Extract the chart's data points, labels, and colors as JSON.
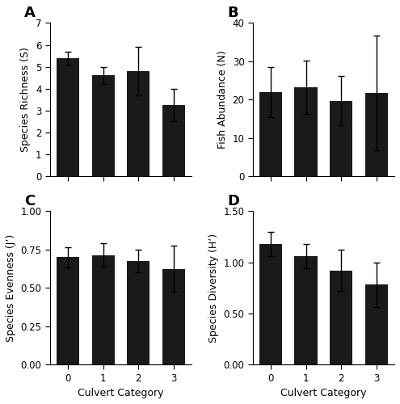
{
  "categories": [
    0,
    1,
    2,
    3
  ],
  "cat_labels": [
    "0",
    "1",
    "2",
    "3"
  ],
  "A": {
    "values": [
      5.4,
      4.6,
      4.8,
      3.25
    ],
    "errors": [
      0.3,
      0.4,
      1.1,
      0.75
    ],
    "ylabel": "Species Richness (S)",
    "ylim": [
      0,
      7
    ],
    "yticks": [
      0,
      1,
      2,
      3,
      4,
      5,
      6,
      7
    ],
    "label": "A"
  },
  "B": {
    "values": [
      22.0,
      23.2,
      19.7,
      21.7
    ],
    "errors": [
      6.5,
      7.0,
      6.5,
      15.0
    ],
    "ylabel": "Fish Abundance (N)",
    "ylim": [
      0,
      40
    ],
    "yticks": [
      0,
      10,
      20,
      30,
      40
    ],
    "label": "B"
  },
  "C": {
    "values": [
      0.7,
      0.715,
      0.675,
      0.625
    ],
    "errors": [
      0.065,
      0.075,
      0.075,
      0.15
    ],
    "ylabel": "Species Evenness (J’)",
    "ylim": [
      0.0,
      1.0
    ],
    "yticks": [
      0.0,
      0.25,
      0.5,
      0.75,
      1.0
    ],
    "label": "C"
  },
  "D": {
    "values": [
      1.18,
      1.06,
      0.92,
      0.78
    ],
    "errors": [
      0.12,
      0.12,
      0.2,
      0.22
    ],
    "ylabel": "Species Diversity (H’)",
    "ylim": [
      0.0,
      1.5
    ],
    "yticks": [
      0.0,
      0.5,
      1.0,
      1.5
    ],
    "label": "D"
  },
  "xlabel": "Culvert Category",
  "bar_color": "#1a1a1a",
  "bar_width": 0.65,
  "ecolor": "#555555",
  "capsize": 3
}
